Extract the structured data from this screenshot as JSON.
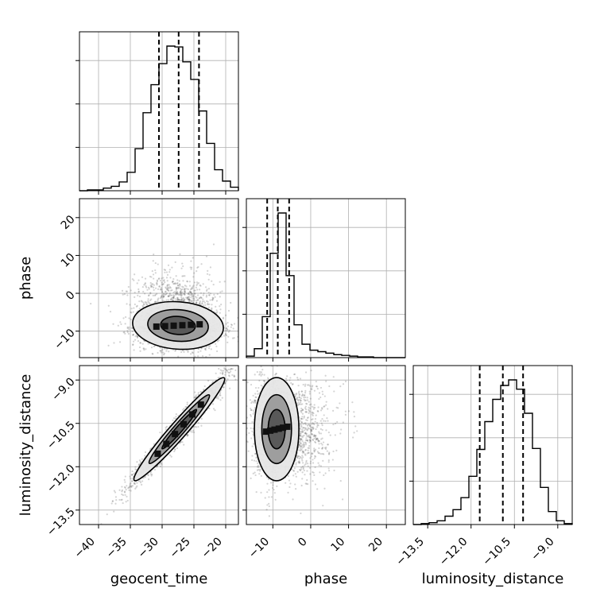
{
  "chart_data": {
    "type": "corner",
    "parameters": [
      "geocent_time",
      "phase",
      "luminosity_distance"
    ],
    "grid": true,
    "histograms": [
      {
        "parameter": "geocent_time",
        "range": [
          -43,
          -18
        ],
        "bin_edges": [
          -43,
          -41.75,
          -40.5,
          -39.25,
          -38,
          -36.75,
          -35.5,
          -34.25,
          -33,
          -31.75,
          -30.5,
          -29.25,
          -28,
          -26.75,
          -25.5,
          -24.25,
          -23,
          -21.75,
          -20.5,
          -19.25,
          -18
        ],
        "counts": [
          0,
          1,
          1,
          3,
          5,
          10,
          21,
          48,
          89,
          121,
          145,
          165,
          164,
          147,
          127,
          91,
          54,
          24,
          11,
          4
        ],
        "quantiles": [
          -30.5,
          -27.4,
          -24.2
        ]
      },
      {
        "parameter": "phase",
        "range": [
          -17,
          25
        ],
        "bin_edges": [
          -17,
          -14.9,
          -12.8,
          -10.7,
          -8.6,
          -6.5,
          -4.4,
          -2.3,
          -0.2,
          1.9,
          4,
          6.1,
          8.2,
          10.3,
          12.4,
          14.5,
          16.6,
          18.7,
          20.8,
          22.9,
          25
        ],
        "counts": [
          2,
          12,
          55,
          140,
          194,
          110,
          44,
          18,
          10,
          8,
          6,
          4,
          3,
          2,
          1,
          1,
          0,
          0,
          0,
          0
        ],
        "quantiles": [
          -11.5,
          -8.7,
          -5.7
        ]
      },
      {
        "parameter": "luminosity_distance",
        "range": [
          -14,
          -8.5
        ],
        "bin_edges": [
          -14,
          -13.725,
          -13.45,
          -13.175,
          -12.9,
          -12.625,
          -12.35,
          -12.075,
          -11.8,
          -11.525,
          -11.25,
          -10.975,
          -10.7,
          -10.425,
          -10.15,
          -9.875,
          -9.6,
          -9.325,
          -9.05,
          -8.775,
          -8.5
        ],
        "counts": [
          0,
          1,
          2,
          4,
          9,
          16,
          29,
          52,
          81,
          111,
          135,
          150,
          156,
          146,
          120,
          82,
          40,
          14,
          4,
          1
        ],
        "quantiles": [
          -11.7,
          -10.9,
          -10.2
        ]
      }
    ],
    "tick_labels": {
      "geocent_time": [
        "−40",
        "−35",
        "−30",
        "−25",
        "−20"
      ],
      "phase": [
        "−10",
        "0",
        "10",
        "20"
      ],
      "luminosity_distance": [
        "−13.5",
        "−12.0",
        "−10.5",
        "−9.0"
      ]
    },
    "tick_values": {
      "geocent_time": [
        -40,
        -35,
        -30,
        -25,
        -20
      ],
      "phase": [
        -10,
        0,
        10,
        20
      ],
      "luminosity_distance": [
        -13.5,
        -12,
        -10.5,
        -9
      ]
    },
    "pairs": [
      {
        "x": "geocent_time",
        "y": "phase",
        "x_range": [
          -43,
          -18
        ],
        "y_range": [
          -17,
          25
        ],
        "mean": [
          -27.5,
          -8.5
        ],
        "sd": [
          3.4,
          3.0
        ],
        "correlation": -0.1,
        "contour_levels_sigma": [
          0.8,
          1.4,
          2.1
        ]
      },
      {
        "x": "geocent_time",
        "y": "luminosity_distance",
        "x_range": [
          -43,
          -18
        ],
        "y_range": [
          -14,
          -8.5
        ],
        "mean": [
          -27.3,
          -10.7
        ],
        "sd": [
          3.4,
          0.85
        ],
        "correlation": 0.97,
        "contour_levels_sigma": [
          0.8,
          1.4,
          2.1
        ]
      },
      {
        "x": "phase",
        "y": "luminosity_distance",
        "x_range": [
          -17,
          25
        ],
        "y_range": [
          -14,
          -8.5
        ],
        "mean": [
          -9,
          -10.7
        ],
        "sd": [
          2.8,
          0.85
        ],
        "correlation": 0.0,
        "contour_levels_sigma": [
          0.8,
          1.4,
          2.1
        ]
      }
    ]
  }
}
